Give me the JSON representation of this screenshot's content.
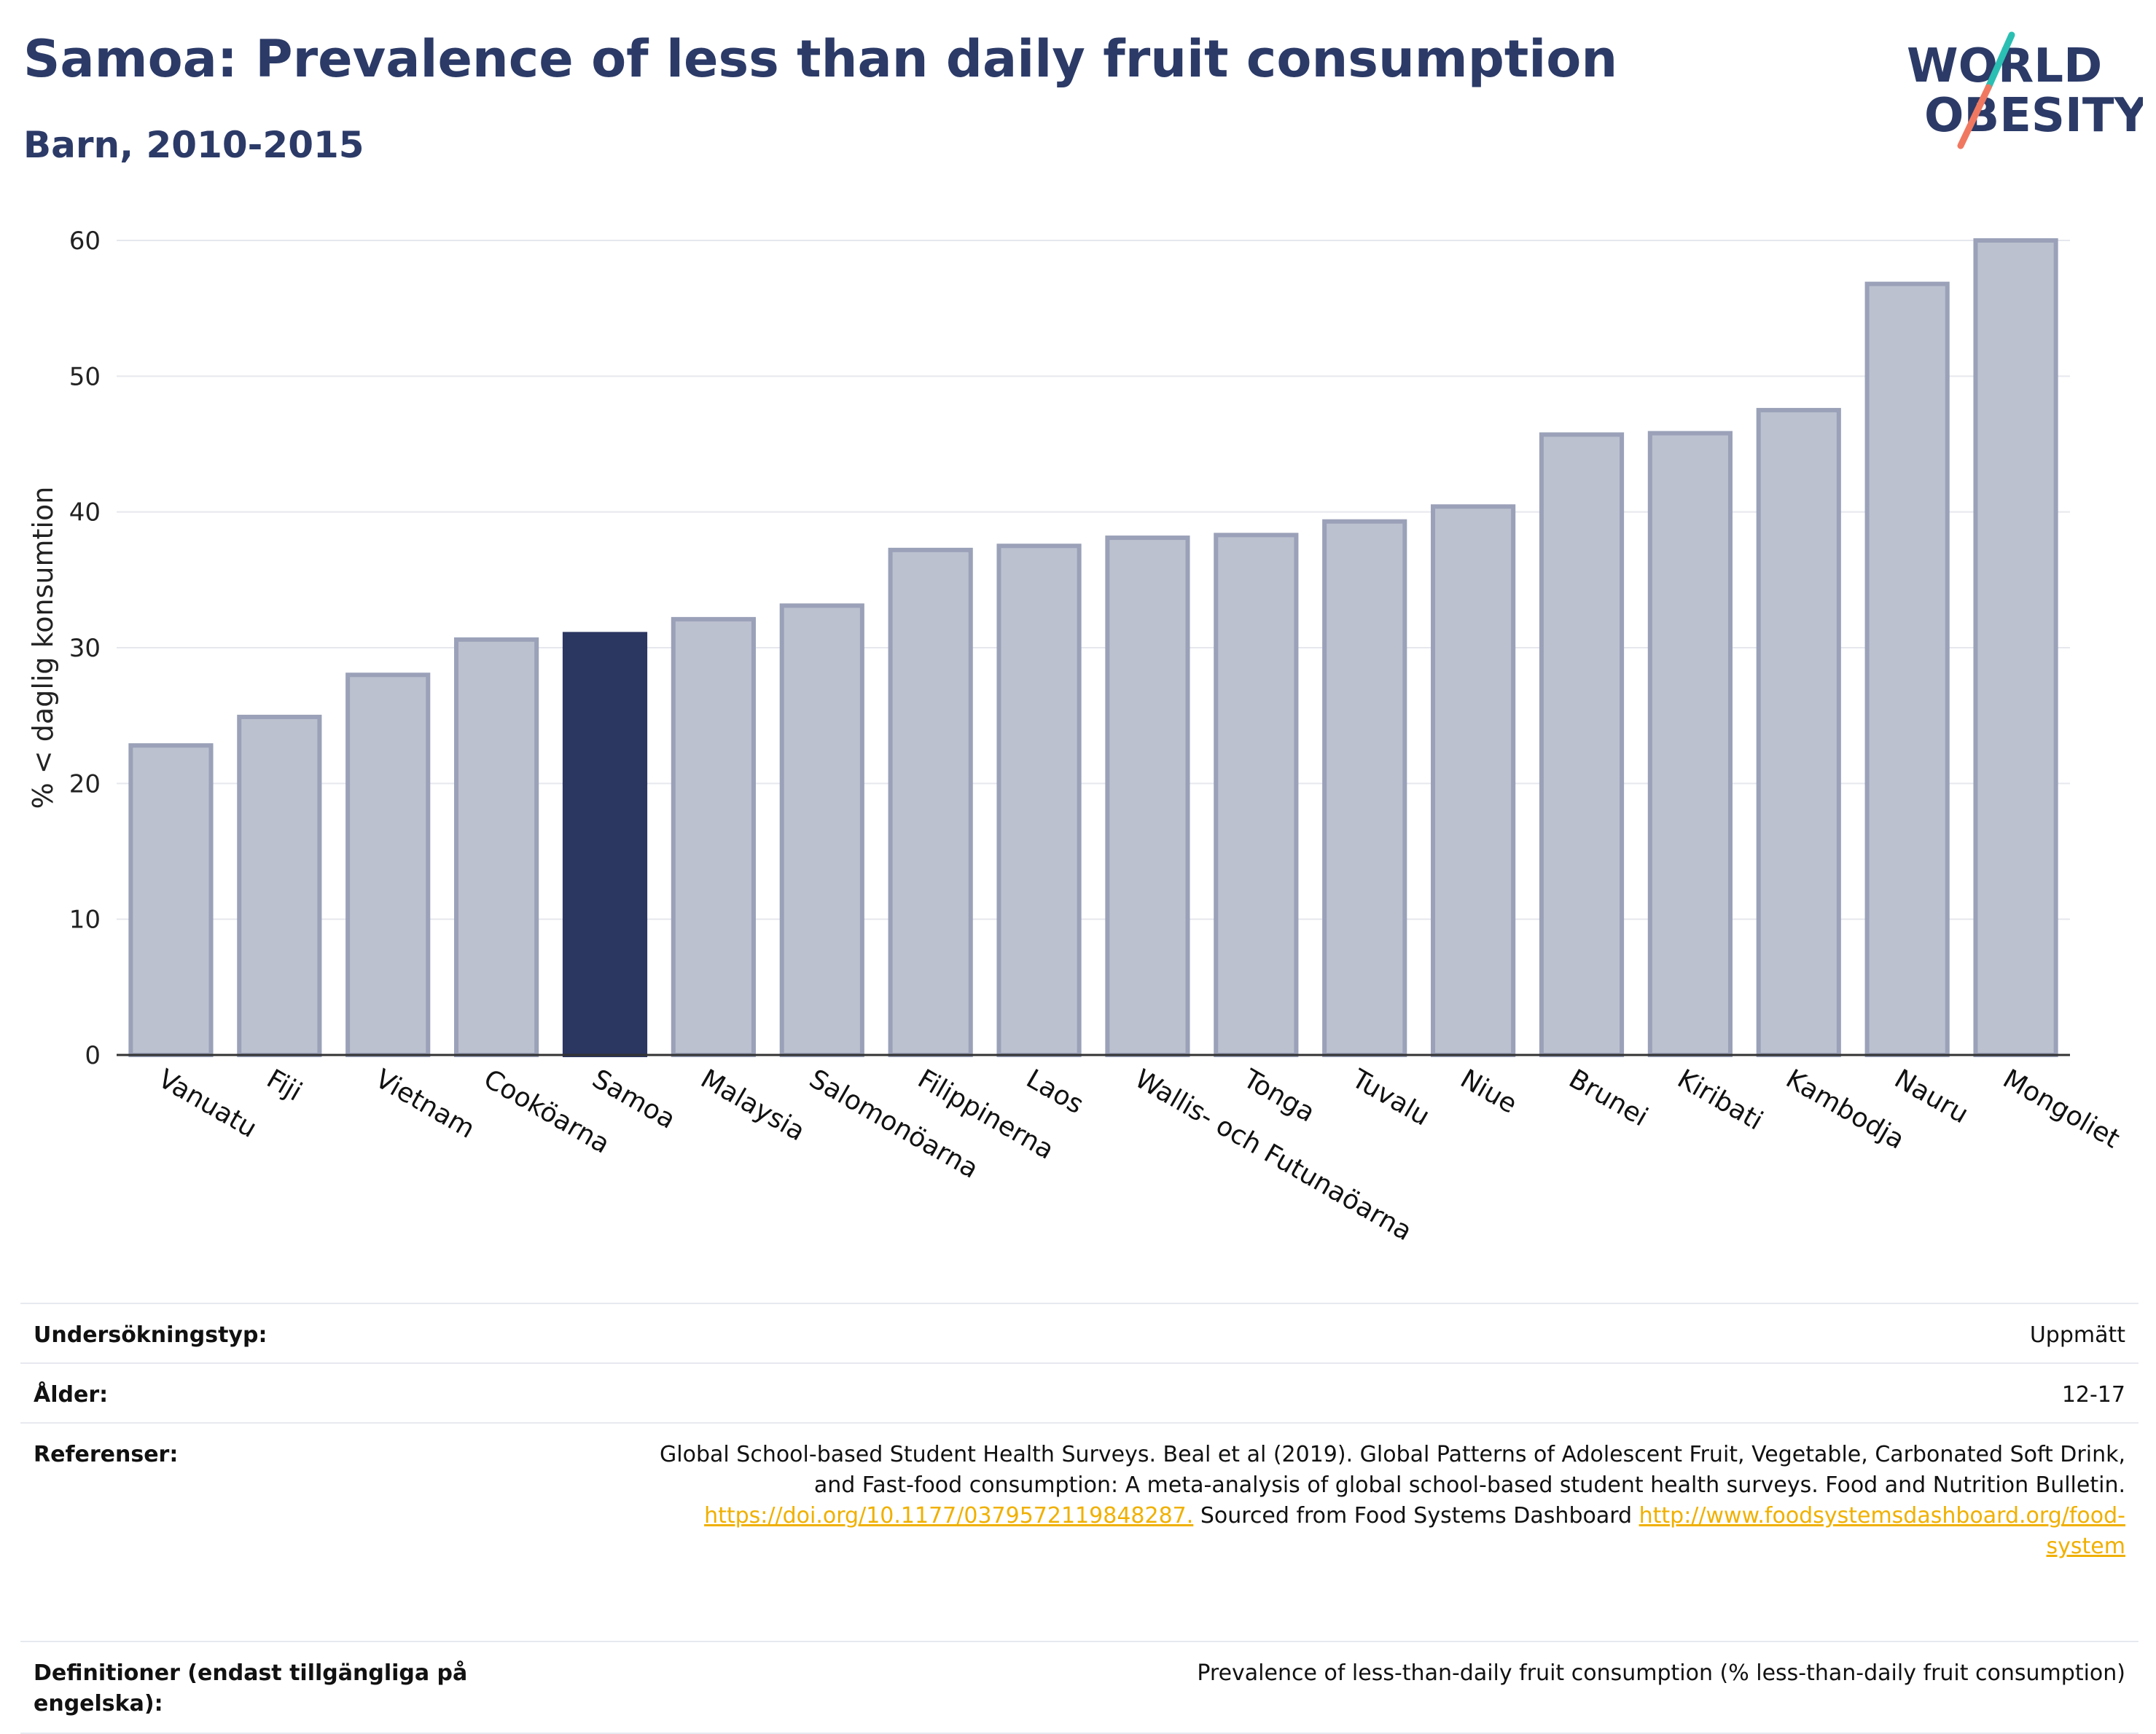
{
  "header": {
    "title": "Samoa: Prevalence of less than daily fruit consumption",
    "subtitle": "Barn, 2010-2015"
  },
  "logo": {
    "line1": "WORLD",
    "line2": "OBESITY",
    "accent1": "#2bbfb3",
    "accent2": "#f07860",
    "color": "#2b3a67"
  },
  "chart_data": {
    "type": "bar",
    "ylabel": "% < daglig konsumtion",
    "ylim": [
      0,
      60
    ],
    "yticks": [
      0,
      10,
      20,
      30,
      40,
      50,
      60
    ],
    "categories": [
      "Vanuatu",
      "Fiji",
      "Vietnam",
      "Cooköarna",
      "Samoa",
      "Malaysia",
      "Salomonöarna",
      "Filippinerna",
      "Laos",
      "Wallis- och Futunaöarna",
      "Tonga",
      "Tuvalu",
      "Niue",
      "Brunei",
      "Kiribati",
      "Kambodja",
      "Nauru",
      "Mongoliet"
    ],
    "values": [
      22.8,
      24.9,
      28.0,
      30.6,
      31.0,
      32.1,
      33.1,
      37.2,
      37.5,
      38.1,
      38.3,
      39.3,
      40.4,
      45.7,
      45.8,
      47.5,
      56.8,
      60.0
    ],
    "highlight": "Samoa",
    "colors": {
      "bar": "#bcc1cf",
      "bar_border": "#9aa1b8",
      "highlight": "#2b3661",
      "grid": "#e6e8ee"
    },
    "grid": true
  },
  "info": {
    "rows": [
      {
        "label": "Undersökningstyp:",
        "value": "Uppmätt"
      },
      {
        "label": "Ålder:",
        "value": "12-17"
      },
      {
        "label": "Referenser:",
        "value_line1": "Global School-based Student Health Surveys. Beal et al (2019). Global Patterns of Adolescent Fruit, Vegetable, Carbonated Soft Drink,",
        "value_line2": "and Fast-food consumption: A meta-analysis of global school-based student health surveys. Food and Nutrition Bulletin.",
        "link1": "https://doi.org/10.1177/0379572119848287.",
        "text_mid": " Sourced from Food Systems Dashboard ",
        "link2a": "http://www.foodsystemsdashboard.org/food-",
        "link2b": "system"
      },
      {
        "label": "Definitioner (endast tillgängliga på engelska):",
        "value": "Prevalence of less-than-daily fruit consumption (% less-than-daily fruit consumption)"
      }
    ]
  }
}
